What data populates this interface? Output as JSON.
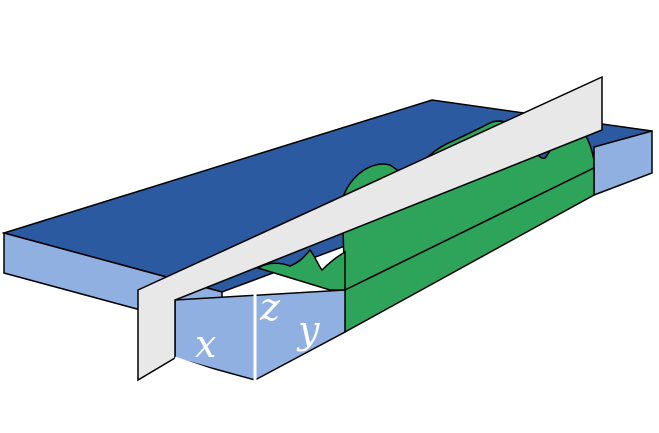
{
  "colors": {
    "background": "#ffffff",
    "slab_top": "#2b5aa0",
    "slab_side": "#8fb0e0",
    "green_fill": "#2ea35a",
    "green_side": "#2ea35a",
    "plane_fill": "#e8e8e8",
    "outline": "#000000",
    "axis": "#ffffff"
  },
  "labels": {
    "x": "x",
    "y": "y",
    "z": "z"
  },
  "icons": {
    "slab": "slab-block-shape",
    "plane": "cutting-plane-shape",
    "region": "green-region-shape"
  }
}
